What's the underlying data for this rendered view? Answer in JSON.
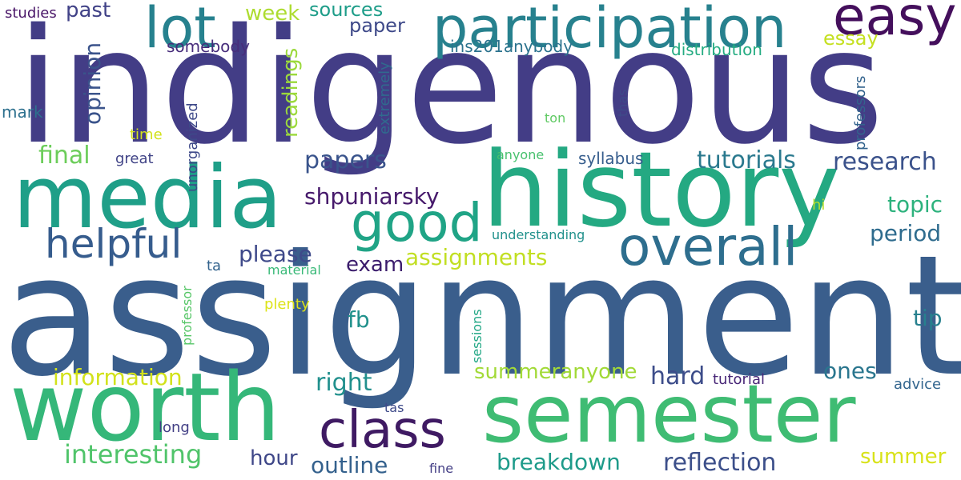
{
  "words": [
    {
      "text": "indigenous",
      "color": "#433d86"
    },
    {
      "text": "assignment",
      "color": "#3a5e8c"
    },
    {
      "text": "history",
      "color": "#24a982"
    },
    {
      "text": "media",
      "color": "#1f9f88"
    },
    {
      "text": "worth",
      "color": "#35b779"
    },
    {
      "text": "semester",
      "color": "#3fbc73"
    },
    {
      "text": "participation",
      "color": "#27818e"
    },
    {
      "text": "lot",
      "color": "#26818e"
    },
    {
      "text": "easy",
      "color": "#440f5c"
    },
    {
      "text": "class",
      "color": "#3f1a63"
    },
    {
      "text": "good",
      "color": "#20a486"
    },
    {
      "text": "overall",
      "color": "#2e6e8e"
    },
    {
      "text": "helpful",
      "color": "#365c8d"
    },
    {
      "text": "interesting",
      "color": "#50c46a"
    },
    {
      "text": "shpuniarsky",
      "color": "#46196b"
    },
    {
      "text": "tutorials",
      "color": "#2a798e"
    },
    {
      "text": "research",
      "color": "#3b528b"
    },
    {
      "text": "papers",
      "color": "#3a548c"
    },
    {
      "text": "final",
      "color": "#6ccd5a"
    },
    {
      "text": "please",
      "color": "#3f4a8a"
    },
    {
      "text": "exam",
      "color": "#3b1c6c"
    },
    {
      "text": "assignments",
      "color": "#c2df23"
    },
    {
      "text": "topic",
      "color": "#2db27d"
    },
    {
      "text": "period",
      "color": "#2f6c8e"
    },
    {
      "text": "information",
      "color": "#d2e21b"
    },
    {
      "text": "right",
      "color": "#21908d"
    },
    {
      "text": "summeranyone",
      "color": "#a2da37"
    },
    {
      "text": "hard",
      "color": "#3d4d8a"
    },
    {
      "text": "ones",
      "color": "#2a768e"
    },
    {
      "text": "tip",
      "color": "#27808e"
    },
    {
      "text": "fb",
      "color": "#21918c"
    },
    {
      "text": "reflection",
      "color": "#3c4f8a"
    },
    {
      "text": "breakdown",
      "color": "#1e9b8a"
    },
    {
      "text": "outline",
      "color": "#34618d"
    },
    {
      "text": "hour",
      "color": "#3f4788"
    },
    {
      "text": "summer",
      "color": "#d8e219"
    },
    {
      "text": "past",
      "color": "#414287"
    },
    {
      "text": "week",
      "color": "#addc30"
    },
    {
      "text": "sources",
      "color": "#1e9d89"
    },
    {
      "text": "paper",
      "color": "#3e4989"
    },
    {
      "text": "essay",
      "color": "#c5e021"
    },
    {
      "text": "opinion",
      "color": "#3a538b"
    },
    {
      "text": "readings",
      "color": "#9bd93c"
    },
    {
      "text": "somebody",
      "color": "#472d7b"
    },
    {
      "text": "ins201anybody",
      "color": "#2c738e"
    },
    {
      "text": "distribution",
      "color": "#25ac82"
    },
    {
      "text": "studies",
      "color": "#481467"
    },
    {
      "text": "mark",
      "color": "#2d708e"
    },
    {
      "text": "time",
      "color": "#d2e21b"
    },
    {
      "text": "great",
      "color": "#414487"
    },
    {
      "text": "syllabus",
      "color": "#365d8d"
    },
    {
      "text": "anyone",
      "color": "#48c16e"
    },
    {
      "text": "ton",
      "color": "#5ec962"
    },
    {
      "text": "hi",
      "color": "#b5de2b"
    },
    {
      "text": "understanding",
      "color": "#21918c"
    },
    {
      "text": "ta",
      "color": "#33638d"
    },
    {
      "text": "material",
      "color": "#38b977"
    },
    {
      "text": "plenty",
      "color": "#dde318"
    },
    {
      "text": "tutorial",
      "color": "#482677"
    },
    {
      "text": "advice",
      "color": "#32658e"
    },
    {
      "text": "tas",
      "color": "#3e4a89"
    },
    {
      "text": "long",
      "color": "#423f85"
    },
    {
      "text": "fine",
      "color": "#433e85"
    },
    {
      "text": "unorganized",
      "color": "#3e4989"
    },
    {
      "text": "extremely",
      "color": "#306a8e"
    },
    {
      "text": "professors",
      "color": "#33638d"
    },
    {
      "text": "thas",
      "color": "#3e4a89"
    },
    {
      "text": "professor",
      "color": "#56c667"
    },
    {
      "text": "sessions",
      "color": "#22a785"
    }
  ]
}
